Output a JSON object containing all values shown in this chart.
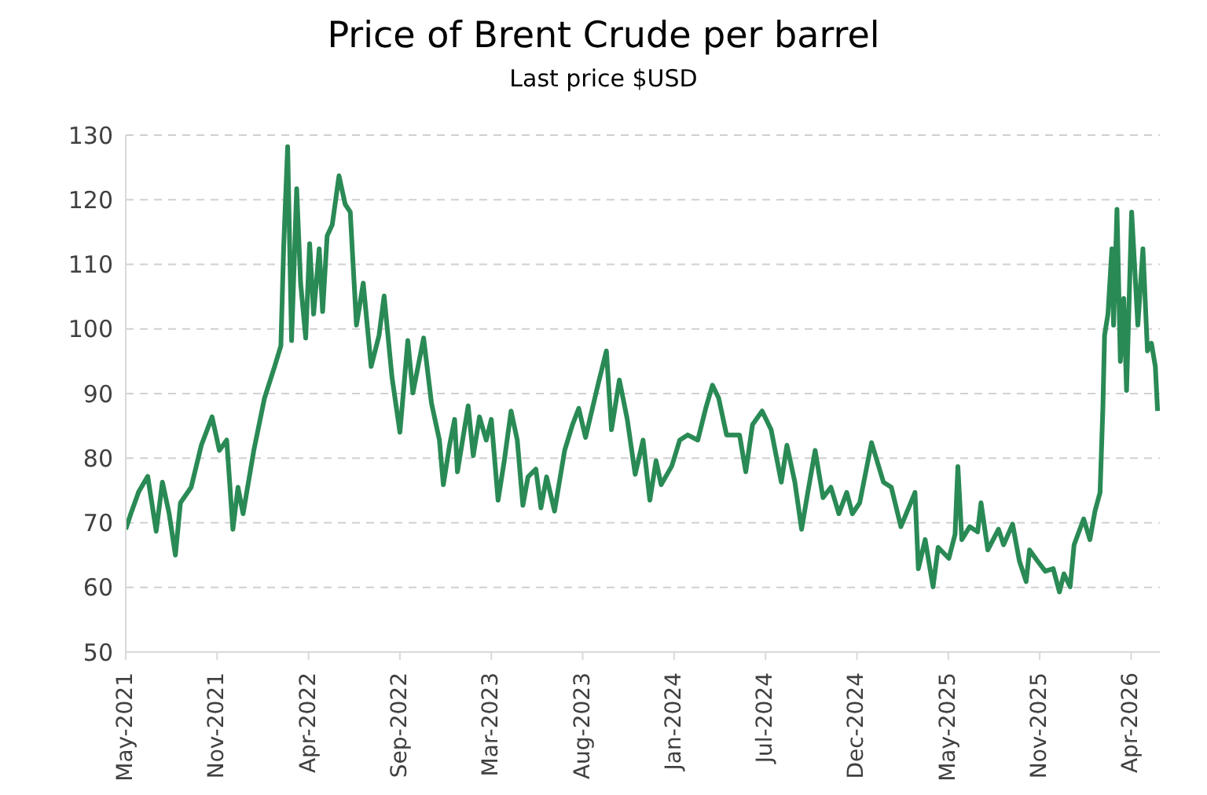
{
  "chart_data": {
    "type": "line",
    "title": "Price of Brent Crude per barrel",
    "subtitle": "Last price $USD",
    "x": [
      "2021-05-28",
      "2021-06-06",
      "2021-06-20",
      "2021-07-06",
      "2021-07-21",
      "2021-08-01",
      "2021-08-13",
      "2021-08-24",
      "2021-09-02",
      "2021-09-21",
      "2021-10-09",
      "2021-10-28",
      "2021-11-10",
      "2021-11-23",
      "2021-12-04",
      "2021-12-13",
      "2021-12-22",
      "2022-01-10",
      "2022-01-29",
      "2022-02-16",
      "2022-02-27",
      "2022-03-04",
      "2022-03-11",
      "2022-03-18",
      "2022-03-27",
      "2022-04-03",
      "2022-04-12",
      "2022-04-19",
      "2022-04-26",
      "2022-05-06",
      "2022-05-12",
      "2022-05-20",
      "2022-05-29",
      "2022-06-10",
      "2022-06-21",
      "2022-06-30",
      "2022-07-05",
      "2022-07-11",
      "2022-07-23",
      "2022-08-06",
      "2022-08-20",
      "2022-08-29",
      "2022-09-12",
      "2022-09-26",
      "2022-10-10",
      "2022-10-19",
      "2022-11-07",
      "2022-11-21",
      "2022-12-05",
      "2022-12-12",
      "2022-12-23",
      "2023-01-01",
      "2023-01-06",
      "2023-01-25",
      "2023-02-03",
      "2023-02-14",
      "2023-02-26",
      "2023-03-07",
      "2023-03-19",
      "2023-03-30",
      "2023-04-11",
      "2023-04-22",
      "2023-05-02",
      "2023-05-11",
      "2023-05-25",
      "2023-06-03",
      "2023-06-13",
      "2023-06-27",
      "2023-07-15",
      "2023-07-29",
      "2023-08-09",
      "2023-08-21",
      "2023-09-13",
      "2023-09-27",
      "2023-10-06",
      "2023-10-20",
      "2023-11-03",
      "2023-11-17",
      "2023-12-01",
      "2023-12-13",
      "2023-12-24",
      "2024-01-02",
      "2024-01-21",
      "2024-02-04",
      "2024-02-18",
      "2024-03-07",
      "2024-03-21",
      "2024-04-02",
      "2024-04-13",
      "2024-04-27",
      "2024-05-20",
      "2024-05-31",
      "2024-06-12",
      "2024-06-29",
      "2024-07-15",
      "2024-08-02",
      "2024-08-12",
      "2024-08-26",
      "2024-09-07",
      "2024-09-18",
      "2024-10-01",
      "2024-10-15",
      "2024-10-29",
      "2024-11-12",
      "2024-11-26",
      "2024-12-06",
      "2024-12-19",
      "2025-01-09",
      "2025-01-30",
      "2025-02-13",
      "2025-03-02",
      "2025-03-27",
      "2025-04-02",
      "2025-04-14",
      "2025-04-28",
      "2025-05-07",
      "2025-05-26",
      "2025-06-06",
      "2025-06-11",
      "2025-06-18",
      "2025-07-02",
      "2025-07-16",
      "2025-07-22",
      "2025-08-03",
      "2025-08-22",
      "2025-08-31",
      "2025-09-16",
      "2025-09-28",
      "2025-10-10",
      "2025-10-16",
      "2025-10-30",
      "2025-11-13",
      "2025-11-27",
      "2025-12-08",
      "2025-12-16",
      "2025-12-27",
      "2026-01-03",
      "2026-01-20",
      "2026-01-31",
      "2026-02-09",
      "2026-02-18",
      "2026-02-23",
      "2026-02-26",
      "2026-03-04",
      "2026-03-11",
      "2026-03-14",
      "2026-03-20",
      "2026-03-26",
      "2026-04-01",
      "2026-04-06",
      "2026-04-15",
      "2026-04-26",
      "2026-05-05",
      "2026-05-13",
      "2026-05-20",
      "2026-05-27",
      "2026-05-31"
    ],
    "series": [
      {
        "color": "#2a8a55",
        "values": [
          69.0,
          71.4,
          74.8,
          77.2,
          68.7,
          76.3,
          71.4,
          65.0,
          73.1,
          75.5,
          82.0,
          86.4,
          81.2,
          82.8,
          69.0,
          75.5,
          71.4,
          81.2,
          89.3,
          94.2,
          97.4,
          112.8,
          128.2,
          98.2,
          121.7,
          107.1,
          98.6,
          113.2,
          102.3,
          112.4,
          102.7,
          114.4,
          116.1,
          123.7,
          119.3,
          118.1,
          110.0,
          100.6,
          107.1,
          94.2,
          99.0,
          105.1,
          92.5,
          84.0,
          98.2,
          90.1,
          98.6,
          88.5,
          82.8,
          75.9,
          82.0,
          86.0,
          77.9,
          88.1,
          80.4,
          86.4,
          82.8,
          86.0,
          73.5,
          79.6,
          87.3,
          82.8,
          72.7,
          77.1,
          78.3,
          72.3,
          77.1,
          71.8,
          81.2,
          85.2,
          87.7,
          83.2,
          91.7,
          96.6,
          84.4,
          92.1,
          86.0,
          77.5,
          82.8,
          73.5,
          79.6,
          75.9,
          78.8,
          82.8,
          83.6,
          82.8,
          87.7,
          91.3,
          89.3,
          83.6,
          83.6,
          77.9,
          85.2,
          87.3,
          84.4,
          76.3,
          82.0,
          76.3,
          69.0,
          74.7,
          81.2,
          73.9,
          75.5,
          71.4,
          74.7,
          71.4,
          73.1,
          82.4,
          76.3,
          75.5,
          69.4,
          74.7,
          62.9,
          67.4,
          60.1,
          66.2,
          64.5,
          68.2,
          78.7,
          67.4,
          69.4,
          68.6,
          73.1,
          65.8,
          69.0,
          66.6,
          69.8,
          64.1,
          60.9,
          65.8,
          64.1,
          62.5,
          62.9,
          59.3,
          62.1,
          60.1,
          66.6,
          70.6,
          67.4,
          71.8,
          74.7,
          87.7,
          99.0,
          102.3,
          112.4,
          100.6,
          118.5,
          95.0,
          104.7,
          90.5,
          118.1,
          100.6,
          112.4,
          96.6,
          97.8,
          94.2,
          87.3
        ]
      }
    ],
    "xlim": [
      "2021-05-28",
      "2026-06-04"
    ],
    "xticks": [
      {
        "value": "2021-05-28",
        "label": "May-2021"
      },
      {
        "value": "2021-11-06",
        "label": "Nov-2021"
      },
      {
        "value": "2022-04-17",
        "label": "Apr-2022"
      },
      {
        "value": "2022-09-26",
        "label": "Sep-2022"
      },
      {
        "value": "2023-03-07",
        "label": "Mar-2023"
      },
      {
        "value": "2023-08-16",
        "label": "Aug-2023"
      },
      {
        "value": "2024-01-25",
        "label": "Jan-2024"
      },
      {
        "value": "2024-07-05",
        "label": "Jul-2024"
      },
      {
        "value": "2024-12-14",
        "label": "Dec-2024"
      },
      {
        "value": "2025-05-25",
        "label": "May-2025"
      },
      {
        "value": "2025-11-03",
        "label": "Nov-2025"
      },
      {
        "value": "2026-04-14",
        "label": "Apr-2026"
      }
    ],
    "ylim": [
      50,
      130
    ],
    "yticks": [
      50,
      60,
      70,
      80,
      90,
      100,
      110,
      120,
      130
    ],
    "grid": "y",
    "legend": false,
    "marker": "none",
    "line_style": "solid"
  }
}
